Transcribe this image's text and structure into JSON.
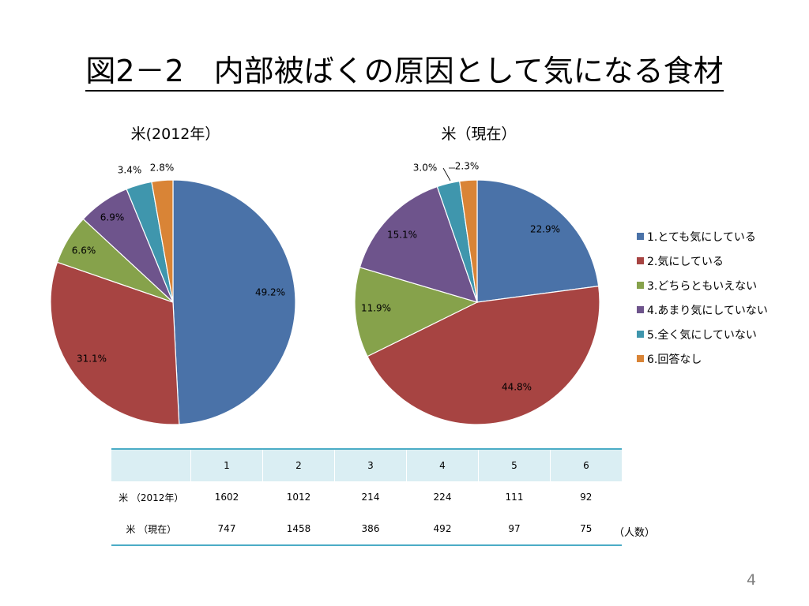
{
  "title": "図2－2　内部被ばくの原因として気になる食材",
  "chart_data": [
    {
      "type": "pie",
      "title": "米(2012年）",
      "labels": [
        "1.とても気にしている",
        "2.気にしている",
        "3.どちらともいえない",
        "4.あまり気にしていない",
        "5.全く気にしていない",
        "6.回答なし"
      ],
      "values": [
        49.2,
        31.1,
        6.6,
        6.9,
        3.4,
        2.8
      ],
      "value_labels": [
        "49.2%",
        "31.1%",
        "6.6%",
        "6.9%",
        "3.4%",
        "2.8%"
      ]
    },
    {
      "type": "pie",
      "title": "米（現在）",
      "labels": [
        "1.とても気にしている",
        "2.気にしている",
        "3.どちらともいえない",
        "4.あまり気にしていない",
        "5.全く気にしていない",
        "6.回答なし"
      ],
      "values": [
        22.9,
        44.8,
        11.9,
        15.1,
        3.0,
        2.3
      ],
      "value_labels": [
        "22.9%",
        "44.8%",
        "11.9%",
        "15.1%",
        "3.0%",
        "2.3%"
      ]
    }
  ],
  "legend": {
    "position": "right",
    "items": [
      "1.とても気にしている",
      "2.気にしている",
      "3.どちらともいえない",
      "4.あまり気にしていない",
      "5.全く気にしていない",
      "6.回答なし"
    ]
  },
  "colors": [
    "#4a72a8",
    "#a74442",
    "#86a24b",
    "#6e548c",
    "#3f96ad",
    "#d98436"
  ],
  "table": {
    "header": [
      "",
      "1",
      "2",
      "3",
      "4",
      "5",
      "6"
    ],
    "rows": [
      [
        "米 （2012年）",
        "1602",
        "1012",
        "214",
        "224",
        "111",
        "92"
      ],
      [
        "米 （現在）",
        "747",
        "1458",
        "386",
        "492",
        "97",
        "75"
      ]
    ],
    "unit": "（人数）"
  },
  "page_number": "4"
}
